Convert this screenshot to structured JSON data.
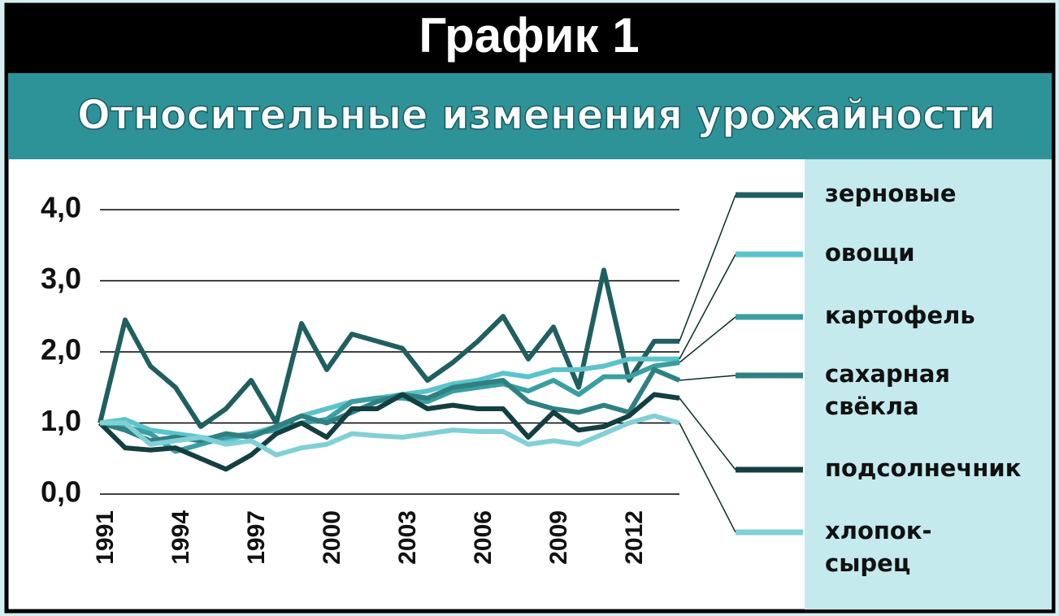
{
  "chart_data": {
    "type": "line",
    "title": "График 1",
    "subtitle": "Относительные изменения урожайности",
    "x": [
      1991,
      1992,
      1993,
      1994,
      1995,
      1996,
      1997,
      1998,
      1999,
      2000,
      2001,
      2002,
      2003,
      2004,
      2005,
      2006,
      2007,
      2008,
      2009,
      2010,
      2011,
      2012,
      2013,
      2014
    ],
    "xlim": [
      1991,
      2014
    ],
    "xticks": [
      1991,
      1994,
      1997,
      2000,
      2003,
      2006,
      2009,
      2012
    ],
    "ylim": [
      0,
      4
    ],
    "yticks": [
      {
        "value": 0,
        "label": "0,0"
      },
      {
        "value": 1,
        "label": "1,0"
      },
      {
        "value": 2,
        "label": "2,0"
      },
      {
        "value": 3,
        "label": "3,0"
      },
      {
        "value": 4,
        "label": "4,0"
      }
    ],
    "grid": true,
    "legend": "right",
    "series": [
      {
        "name": "зерновые",
        "color": "#1f5f60",
        "values": [
          1.0,
          2.45,
          1.8,
          1.5,
          0.95,
          1.2,
          1.6,
          1.0,
          2.4,
          1.75,
          2.25,
          2.15,
          2.05,
          1.6,
          1.85,
          2.15,
          2.5,
          1.9,
          2.35,
          1.5,
          3.15,
          1.6,
          2.15,
          2.15
        ]
      },
      {
        "name": "овощи",
        "color": "#5cc3cb",
        "values": [
          1.0,
          1.05,
          0.9,
          0.85,
          0.8,
          0.75,
          0.85,
          0.95,
          1.1,
          1.2,
          1.3,
          1.35,
          1.4,
          1.45,
          1.55,
          1.6,
          1.7,
          1.65,
          1.75,
          1.75,
          1.8,
          1.9,
          1.9,
          1.9
        ]
      },
      {
        "name": "картофель",
        "color": "#3a9ea2",
        "values": [
          1.0,
          0.95,
          0.85,
          0.6,
          0.7,
          0.8,
          0.85,
          0.9,
          1.0,
          1.05,
          1.3,
          1.35,
          1.35,
          1.3,
          1.45,
          1.5,
          1.55,
          1.45,
          1.6,
          1.4,
          1.65,
          1.65,
          1.8,
          1.85
        ]
      },
      {
        "name": "сахарная свёкла",
        "color": "#2f8083",
        "values": [
          1.0,
          0.9,
          0.75,
          0.8,
          0.75,
          0.85,
          0.8,
          0.95,
          1.1,
          1.0,
          1.15,
          1.3,
          1.4,
          1.35,
          1.5,
          1.55,
          1.6,
          1.3,
          1.2,
          1.15,
          1.25,
          1.15,
          1.75,
          1.6
        ]
      },
      {
        "name": "подсолнечник",
        "color": "#143f41",
        "values": [
          1.0,
          0.65,
          0.62,
          0.65,
          0.5,
          0.35,
          0.55,
          0.85,
          1.0,
          0.8,
          1.2,
          1.2,
          1.4,
          1.2,
          1.25,
          1.2,
          1.2,
          0.8,
          1.15,
          0.9,
          0.95,
          1.1,
          1.4,
          1.35
        ]
      },
      {
        "name": "хлопок-сырец",
        "color": "#80d0d6",
        "values": [
          1.0,
          1.0,
          0.7,
          0.75,
          0.8,
          0.7,
          0.75,
          0.55,
          0.65,
          0.7,
          0.85,
          0.82,
          0.8,
          0.85,
          0.9,
          0.88,
          0.88,
          0.7,
          0.75,
          0.7,
          0.85,
          1.0,
          1.1,
          1.0
        ]
      }
    ]
  }
}
